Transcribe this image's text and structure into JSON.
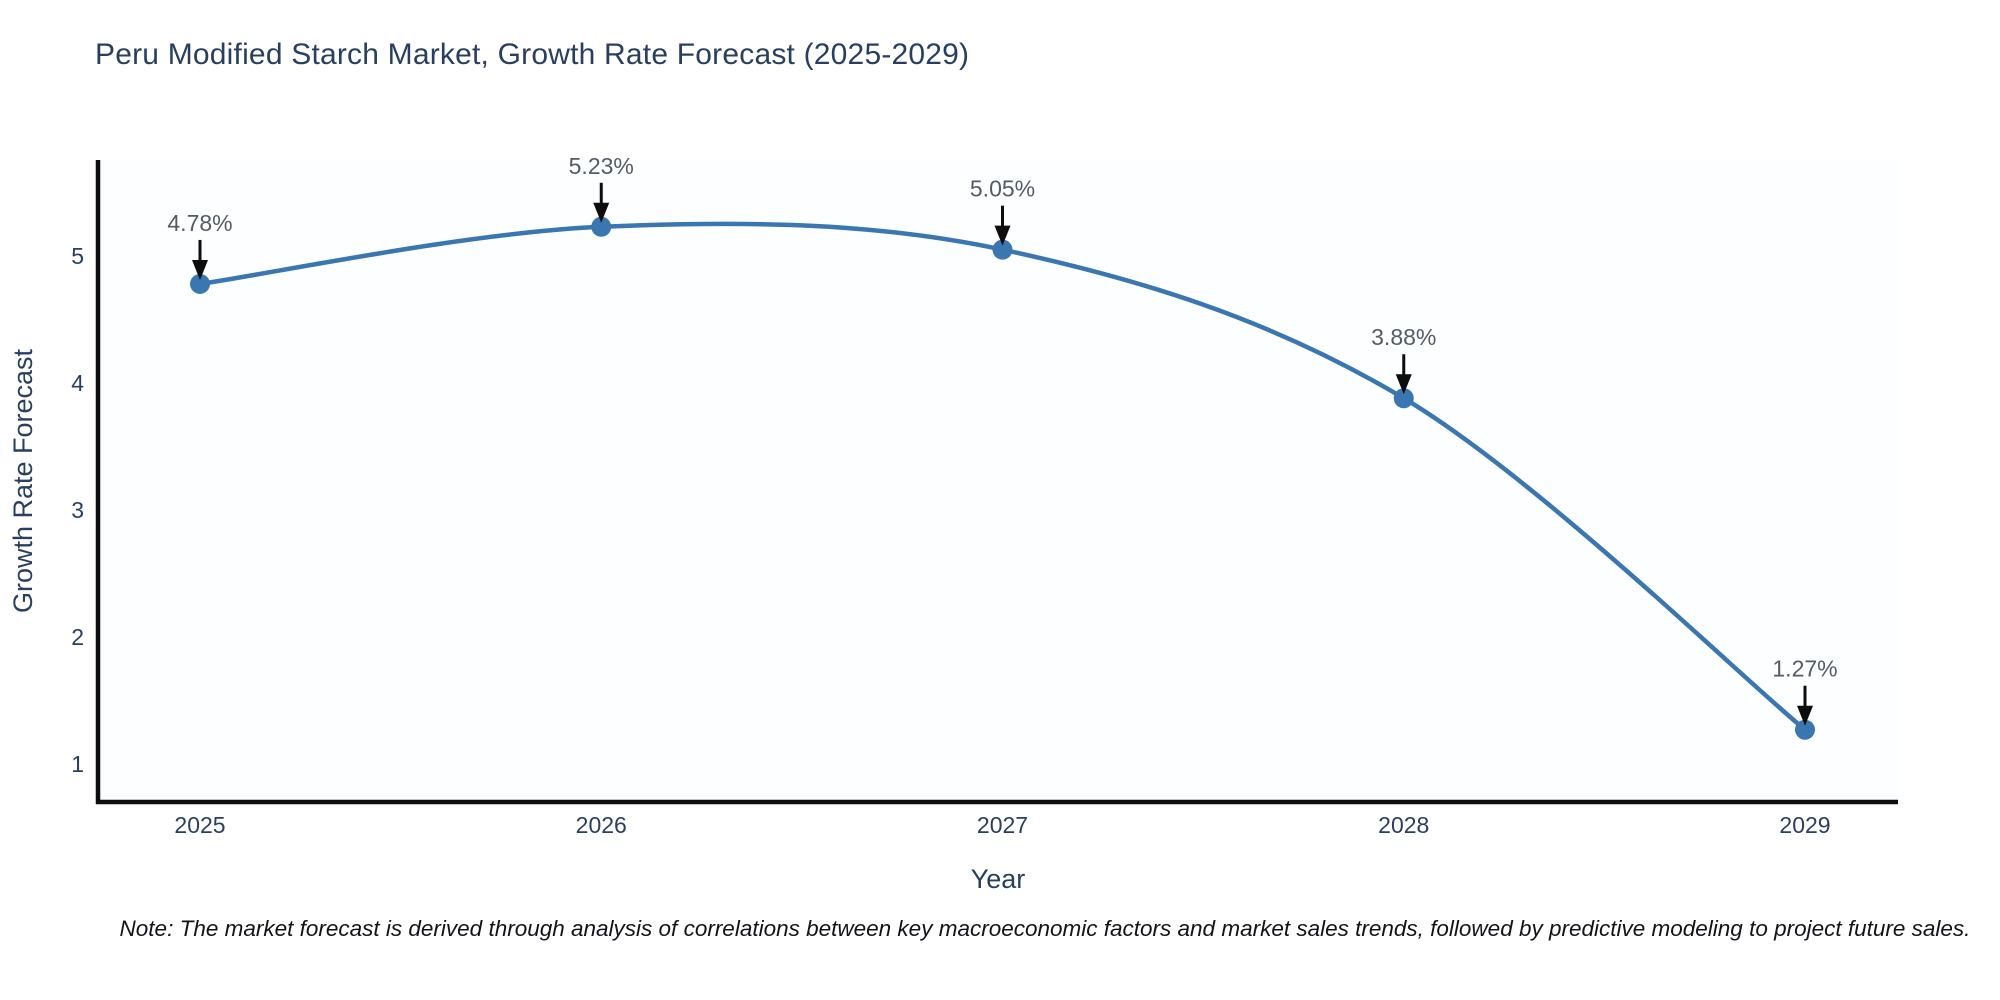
{
  "note": "Note: The market forecast is derived through analysis of correlations between key macroeconomic factors and market sales trends, followed by predictive modeling to project future sales.",
  "chart_data": {
    "type": "line",
    "title": "Peru Modified Starch Market, Growth Rate Forecast (2025-2029)",
    "xlabel": "Year",
    "ylabel": "Growth Rate Forecast",
    "x": [
      "2025",
      "2026",
      "2027",
      "2028",
      "2029"
    ],
    "values": [
      4.78,
      5.23,
      5.05,
      3.88,
      1.27
    ],
    "point_labels": [
      "4.78%",
      "5.23%",
      "5.05%",
      "3.88%",
      "1.27%"
    ],
    "y_ticks": [
      1,
      2,
      3,
      4,
      5
    ],
    "ylim": [
      0.7,
      5.76
    ],
    "line_shape": "spline",
    "grid": "off",
    "legend": "none",
    "colors": {
      "line": "#3a76af",
      "marker": "#3a76af",
      "axis_line": "#0d0d0d",
      "tick_text": "#2a3f5f",
      "axis_title_text": "#2a3f5f",
      "annotation_text": "#545b64",
      "annotation_arrow": "#0d0d0d",
      "title_text": "#2a3f5f"
    }
  }
}
